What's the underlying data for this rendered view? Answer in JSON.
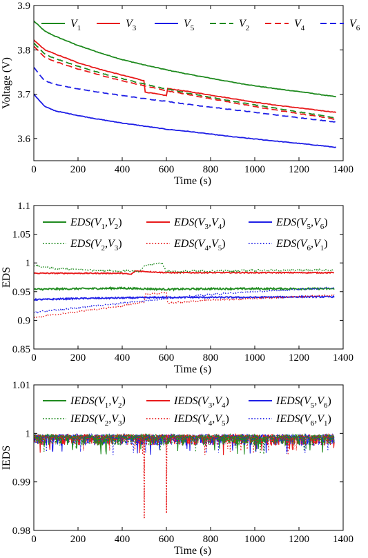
{
  "colors": {
    "green": "#1e8a1e",
    "red": "#e8191a",
    "blue": "#1e1ee6"
  },
  "chart_data": [
    {
      "type": "line",
      "xlabel": "Time (s)",
      "ylabel": "Voltage (V)",
      "xlim": [
        0,
        1400
      ],
      "ylim": [
        3.55,
        3.9
      ],
      "x_ticks": [
        "0",
        "200",
        "400",
        "600",
        "800",
        "1000",
        "1200",
        "1400"
      ],
      "y_ticks": [
        "3.6",
        "3.7",
        "3.8",
        "3.9"
      ],
      "legend_position": "top",
      "series": [
        {
          "name": "V1",
          "legend_main": "V",
          "legend_sub": "1",
          "color": "green",
          "dash": "solid",
          "points": [
            [
              0,
              3.865
            ],
            [
              50,
              3.842
            ],
            [
              100,
              3.83
            ],
            [
              200,
              3.81
            ],
            [
              300,
              3.793
            ],
            [
              400,
              3.778
            ],
            [
              500,
              3.766
            ],
            [
              600,
              3.755
            ],
            [
              700,
              3.745
            ],
            [
              800,
              3.736
            ],
            [
              900,
              3.727
            ],
            [
              1000,
              3.719
            ],
            [
              1100,
              3.712
            ],
            [
              1200,
              3.706
            ],
            [
              1300,
              3.699
            ],
            [
              1370,
              3.694
            ]
          ]
        },
        {
          "name": "V3",
          "legend_main": "V",
          "legend_sub": "3",
          "color": "red",
          "dash": "solid",
          "points": [
            [
              0,
              3.822
            ],
            [
              50,
              3.8
            ],
            [
              100,
              3.79
            ],
            [
              200,
              3.771
            ],
            [
              300,
              3.756
            ],
            [
              400,
              3.743
            ],
            [
              480,
              3.733
            ],
            [
              500,
              3.73
            ],
            [
              502,
              3.705
            ],
            [
              600,
              3.697
            ],
            [
              603,
              3.713
            ],
            [
              700,
              3.706
            ],
            [
              800,
              3.698
            ],
            [
              900,
              3.69
            ],
            [
              1000,
              3.682
            ],
            [
              1100,
              3.675
            ],
            [
              1200,
              3.669
            ],
            [
              1300,
              3.663
            ],
            [
              1370,
              3.659
            ]
          ]
        },
        {
          "name": "V5",
          "legend_main": "V",
          "legend_sub": "5",
          "color": "blue",
          "dash": "solid",
          "points": [
            [
              0,
              3.7
            ],
            [
              50,
              3.672
            ],
            [
              100,
              3.662
            ],
            [
              200,
              3.652
            ],
            [
              300,
              3.643
            ],
            [
              400,
              3.635
            ],
            [
              500,
              3.628
            ],
            [
              600,
              3.621
            ],
            [
              700,
              3.616
            ],
            [
              800,
              3.61
            ],
            [
              900,
              3.604
            ],
            [
              1000,
              3.599
            ],
            [
              1100,
              3.594
            ],
            [
              1200,
              3.589
            ],
            [
              1300,
              3.584
            ],
            [
              1370,
              3.58
            ]
          ]
        },
        {
          "name": "V2",
          "legend_main": "V",
          "legend_sub": "2",
          "color": "green",
          "dash": "dashed",
          "points": [
            [
              0,
              3.815
            ],
            [
              50,
              3.79
            ],
            [
              100,
              3.78
            ],
            [
              200,
              3.763
            ],
            [
              300,
              3.748
            ],
            [
              400,
              3.735
            ],
            [
              500,
              3.723
            ],
            [
              600,
              3.712
            ],
            [
              700,
              3.702
            ],
            [
              800,
              3.693
            ],
            [
              900,
              3.684
            ],
            [
              1000,
              3.676
            ],
            [
              1100,
              3.668
            ],
            [
              1200,
              3.66
            ],
            [
              1300,
              3.652
            ],
            [
              1370,
              3.646
            ]
          ]
        },
        {
          "name": "V4",
          "legend_main": "V",
          "legend_sub": "4",
          "color": "red",
          "dash": "dashed",
          "points": [
            [
              0,
              3.808
            ],
            [
              50,
              3.783
            ],
            [
              100,
              3.773
            ],
            [
              200,
              3.757
            ],
            [
              300,
              3.743
            ],
            [
              400,
              3.73
            ],
            [
              500,
              3.719
            ],
            [
              600,
              3.708
            ],
            [
              700,
              3.699
            ],
            [
              800,
              3.69
            ],
            [
              900,
              3.681
            ],
            [
              1000,
              3.672
            ],
            [
              1100,
              3.664
            ],
            [
              1200,
              3.656
            ],
            [
              1300,
              3.649
            ],
            [
              1370,
              3.643
            ]
          ]
        },
        {
          "name": "V6",
          "legend_main": "V",
          "legend_sub": "6",
          "color": "blue",
          "dash": "dashed",
          "points": [
            [
              0,
              3.76
            ],
            [
              50,
              3.73
            ],
            [
              100,
              3.722
            ],
            [
              200,
              3.712
            ],
            [
              300,
              3.704
            ],
            [
              400,
              3.697
            ],
            [
              500,
              3.69
            ],
            [
              600,
              3.684
            ],
            [
              700,
              3.677
            ],
            [
              800,
              3.671
            ],
            [
              900,
              3.665
            ],
            [
              1000,
              3.659
            ],
            [
              1100,
              3.653
            ],
            [
              1200,
              3.647
            ],
            [
              1300,
              3.641
            ],
            [
              1370,
              3.637
            ]
          ]
        }
      ]
    },
    {
      "type": "line",
      "xlabel": "Time (s)",
      "ylabel": "EDS",
      "xlim": [
        0,
        1400
      ],
      "ylim": [
        0.85,
        1.1
      ],
      "x_ticks": [
        "0",
        "200",
        "400",
        "600",
        "800",
        "1000",
        "1200",
        "1400"
      ],
      "y_ticks": [
        "0.85",
        "0.9",
        "0.95",
        "1",
        "1.05",
        "1.1"
      ],
      "legend_position": "top",
      "series": [
        {
          "name": "EDS(V1,V2)",
          "legend_fn": "EDS",
          "legend_a": "1",
          "legend_b": "2",
          "color": "green",
          "dash": "solid",
          "noise": 0.0015,
          "points": [
            [
              0,
              0.954
            ],
            [
              200,
              0.955
            ],
            [
              400,
              0.956
            ],
            [
              600,
              0.954
            ],
            [
              800,
              0.955
            ],
            [
              1000,
              0.955
            ],
            [
              1200,
              0.955
            ],
            [
              1360,
              0.955
            ]
          ]
        },
        {
          "name": "EDS(V3,V4)",
          "legend_fn": "EDS",
          "legend_a": "3",
          "legend_b": "4",
          "color": "red",
          "dash": "solid",
          "noise": 0.0008,
          "points": [
            [
              0,
              0.982
            ],
            [
              400,
              0.982
            ],
            [
              440,
              0.98
            ],
            [
              460,
              0.986
            ],
            [
              600,
              0.983
            ],
            [
              800,
              0.983
            ],
            [
              1000,
              0.983
            ],
            [
              1200,
              0.983
            ],
            [
              1360,
              0.983
            ]
          ]
        },
        {
          "name": "EDS(V5,V6)",
          "legend_fn": "EDS",
          "legend_a": "5",
          "legend_b": "6",
          "color": "blue",
          "dash": "solid",
          "noise": 0.0012,
          "points": [
            [
              0,
              0.936
            ],
            [
              200,
              0.938
            ],
            [
              400,
              0.939
            ],
            [
              600,
              0.94
            ],
            [
              800,
              0.94
            ],
            [
              1000,
              0.94
            ],
            [
              1200,
              0.941
            ],
            [
              1360,
              0.941
            ]
          ]
        },
        {
          "name": "EDS(V2,V3)",
          "legend_fn": "EDS",
          "legend_a": "2",
          "legend_b": "3",
          "color": "green",
          "dash": "dotted",
          "noise": 0.0015,
          "points": [
            [
              0,
              0.995
            ],
            [
              100,
              0.99
            ],
            [
              300,
              0.987
            ],
            [
              480,
              0.985
            ],
            [
              500,
              0.995
            ],
            [
              580,
              1.0
            ],
            [
              600,
              0.985
            ],
            [
              800,
              0.986
            ],
            [
              1000,
              0.987
            ],
            [
              1200,
              0.987
            ],
            [
              1360,
              0.988
            ]
          ]
        },
        {
          "name": "EDS(V4,V5)",
          "legend_fn": "EDS",
          "legend_a": "4",
          "legend_b": "5",
          "color": "red",
          "dash": "dotted",
          "noise": 0.0012,
          "points": [
            [
              0,
              0.905
            ],
            [
              200,
              0.915
            ],
            [
              400,
              0.925
            ],
            [
              500,
              0.932
            ],
            [
              505,
              0.945
            ],
            [
              600,
              0.948
            ],
            [
              605,
              0.93
            ],
            [
              800,
              0.935
            ],
            [
              1000,
              0.938
            ],
            [
              1200,
              0.941
            ],
            [
              1360,
              0.944
            ]
          ]
        },
        {
          "name": "EDS(V6,V1)",
          "legend_fn": "EDS",
          "legend_a": "6",
          "legend_b": "1",
          "color": "blue",
          "dash": "dotted",
          "noise": 0.0012,
          "points": [
            [
              0,
              0.914
            ],
            [
              200,
              0.922
            ],
            [
              400,
              0.93
            ],
            [
              600,
              0.938
            ],
            [
              800,
              0.945
            ],
            [
              1000,
              0.95
            ],
            [
              1200,
              0.954
            ],
            [
              1360,
              0.957
            ]
          ]
        }
      ]
    },
    {
      "type": "line",
      "xlabel": "Time (s)",
      "ylabel": "IEDS",
      "xlim": [
        0,
        1400
      ],
      "ylim": [
        0.98,
        1.01
      ],
      "x_ticks": [
        "0",
        "200",
        "400",
        "600",
        "800",
        "1000",
        "1200",
        "1400"
      ],
      "y_ticks": [
        "0.98",
        "0.99",
        "1",
        "1.01"
      ],
      "legend_position": "top",
      "band": {
        "high": 0.9998,
        "low": 0.9975,
        "spike_low": 0.9955
      },
      "dips": [
        {
          "x": 500,
          "y": 0.9825
        },
        {
          "x": 600,
          "y": 0.9835
        }
      ],
      "series": [
        {
          "name": "IEDS(V1,V2)",
          "legend_fn": "IEDS",
          "legend_a": "1",
          "legend_b": "2",
          "color": "green",
          "dash": "solid"
        },
        {
          "name": "IEDS(V3,V4)",
          "legend_fn": "IEDS",
          "legend_a": "3",
          "legend_b": "4",
          "color": "red",
          "dash": "solid"
        },
        {
          "name": "IEDS(V5,V6)",
          "legend_fn": "IEDS",
          "legend_a": "5",
          "legend_b": "6",
          "color": "blue",
          "dash": "solid"
        },
        {
          "name": "IEDS(V2,V3)",
          "legend_fn": "IEDS",
          "legend_a": "2",
          "legend_b": "3",
          "color": "green",
          "dash": "dotted"
        },
        {
          "name": "IEDS(V4,V5)",
          "legend_fn": "IEDS",
          "legend_a": "4",
          "legend_b": "5",
          "color": "red",
          "dash": "dotted"
        },
        {
          "name": "IEDS(V6,V1)",
          "legend_fn": "IEDS",
          "legend_a": "6",
          "legend_b": "1",
          "color": "blue",
          "dash": "dotted"
        }
      ]
    }
  ]
}
